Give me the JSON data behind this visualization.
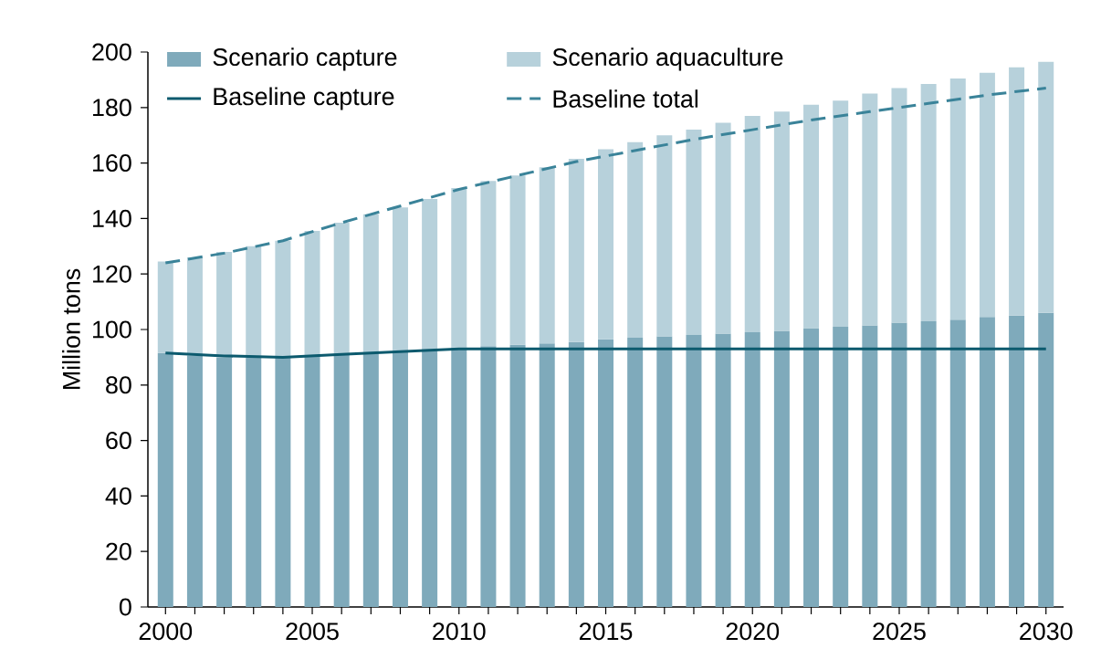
{
  "chart_data": {
    "type": "bar",
    "stacked": true,
    "ylabel": "Million tons",
    "legend": "top left",
    "x": [
      2000,
      2001,
      2002,
      2003,
      2004,
      2005,
      2006,
      2007,
      2008,
      2009,
      2010,
      2011,
      2012,
      2013,
      2014,
      2015,
      2016,
      2017,
      2018,
      2019,
      2020,
      2021,
      2022,
      2023,
      2024,
      2025,
      2026,
      2027,
      2028,
      2029,
      2030
    ],
    "xlim": [
      1999.4,
      2030.6
    ],
    "ylim": [
      0,
      200
    ],
    "xticks": [
      2000,
      {
        "value": 2001,
        "label": null
      },
      {
        "value": 2002,
        "label": null
      },
      {
        "value": 2003,
        "label": null
      },
      {
        "value": 2004,
        "label": null
      },
      2005,
      {
        "value": 2006,
        "label": null
      },
      {
        "value": 2007,
        "label": null
      },
      {
        "value": 2008,
        "label": null
      },
      {
        "value": 2009,
        "label": null
      },
      2010,
      {
        "value": 2011,
        "label": null
      },
      {
        "value": 2012,
        "label": null
      },
      {
        "value": 2013,
        "label": null
      },
      {
        "value": 2014,
        "label": null
      },
      2015,
      {
        "value": 2016,
        "label": null
      },
      {
        "value": 2017,
        "label": null
      },
      {
        "value": 2018,
        "label": null
      },
      {
        "value": 2019,
        "label": null
      },
      2020,
      {
        "value": 2021,
        "label": null
      },
      {
        "value": 2022,
        "label": null
      },
      {
        "value": 2023,
        "label": null
      },
      {
        "value": 2024,
        "label": null
      },
      2025,
      {
        "value": 2026,
        "label": null
      },
      {
        "value": 2027,
        "label": null
      },
      {
        "value": 2028,
        "label": null
      },
      {
        "value": 2029,
        "label": null
      },
      2030
    ],
    "yticks": [
      0,
      20,
      40,
      60,
      80,
      100,
      120,
      140,
      160,
      180,
      200
    ],
    "series": [
      {
        "name": "Scenario capture",
        "color": "#7faabb",
        "values": [
          91.5,
          90.5,
          90,
          90,
          90,
          90.5,
          91,
          91.5,
          92,
          93,
          93.5,
          94,
          94.5,
          95,
          95.5,
          96.5,
          97,
          97.5,
          98,
          98.5,
          99,
          99.5,
          100.5,
          101,
          101.5,
          102.5,
          103,
          103.5,
          104.5,
          105,
          106
        ]
      },
      {
        "name": "Scenario aquaculture",
        "color": "#b7d1db",
        "values": [
          33,
          35.5,
          38,
          40,
          42,
          45,
          47.5,
          50,
          52,
          54,
          57.5,
          59.5,
          61,
          63.5,
          66,
          68.5,
          70.5,
          72.5,
          74,
          76,
          78,
          79,
          80.5,
          81.5,
          83.5,
          84.5,
          85.5,
          87,
          88,
          89.5,
          90.5
        ]
      },
      {
        "name": "Baseline capture",
        "type": "line",
        "line_style": "solid",
        "color": "#0c5a6e",
        "x": [
          2000,
          2002,
          2004,
          2006,
          2008,
          2010,
          2015,
          2020,
          2025,
          2030
        ],
        "values": [
          91.5,
          90.5,
          90,
          91,
          92,
          93,
          93,
          93,
          93,
          93
        ]
      },
      {
        "name": "Baseline total",
        "type": "line",
        "line_style": "dashed",
        "color": "#3a8399",
        "x": [
          2000,
          2002,
          2004,
          2006,
          2008,
          2010,
          2012,
          2014,
          2016,
          2018,
          2020,
          2022,
          2024,
          2026,
          2028,
          2030
        ],
        "values": [
          124,
          127.5,
          132,
          138.5,
          144.5,
          150.5,
          155.5,
          160.5,
          164.5,
          168.5,
          172,
          175.5,
          178.5,
          181.5,
          184.5,
          187
        ]
      }
    ]
  }
}
